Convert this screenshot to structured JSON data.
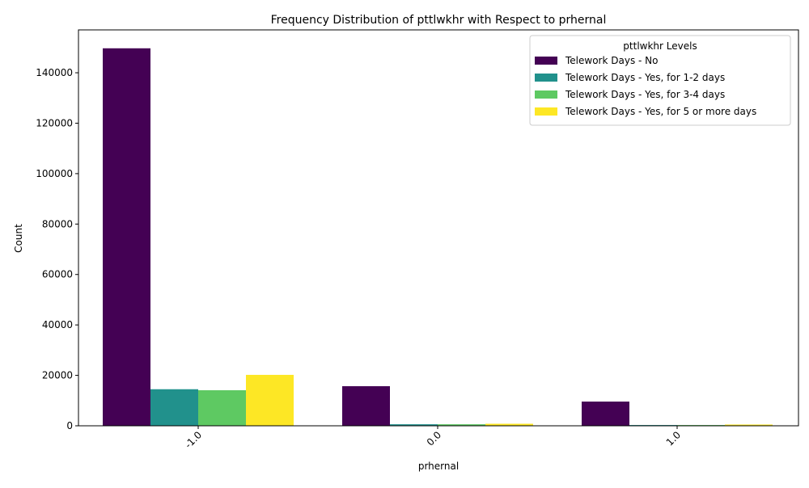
{
  "chart_data": {
    "type": "bar",
    "title": "Frequency Distribution of pttlwkhr with Respect to prhernal",
    "xlabel": "prhernal",
    "ylabel": "Count",
    "categories": [
      "-1.0",
      "0.0",
      "1.0"
    ],
    "ylim": [
      0,
      157000
    ],
    "yticks": [
      0,
      20000,
      40000,
      60000,
      80000,
      100000,
      120000,
      140000
    ],
    "legend": {
      "title": "pttlwkhr Levels",
      "placement": "top-right"
    },
    "series": [
      {
        "name": "Telework Days - No",
        "color": "#440154",
        "values": [
          149700,
          15700,
          9600
        ]
      },
      {
        "name": "Telework Days - Yes, for 1-2 days",
        "color": "#21918c",
        "values": [
          14500,
          600,
          300
        ]
      },
      {
        "name": "Telework Days - Yes, for 3-4 days",
        "color": "#5ec962",
        "values": [
          14100,
          600,
          300
        ]
      },
      {
        "name": "Telework Days - Yes, for 5 or more days",
        "color": "#fde725",
        "values": [
          20200,
          800,
          500
        ]
      }
    ]
  }
}
